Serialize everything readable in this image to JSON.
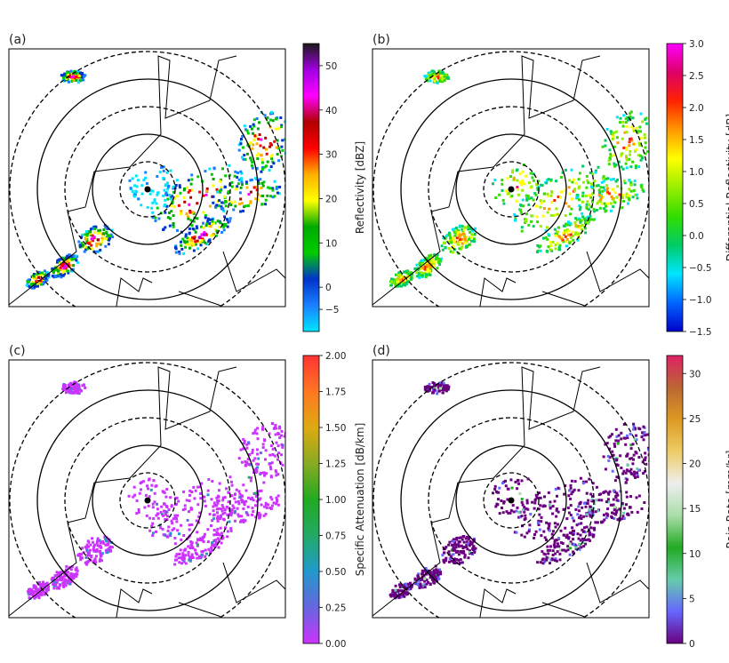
{
  "chart_data": [
    {
      "panel": "(a)",
      "type": "radar-ppi",
      "colorbar": {
        "label": "Reflectivity [dBZ]",
        "range": [
          -10,
          55
        ],
        "ticks": [
          -5,
          0,
          10,
          20,
          30,
          40,
          50
        ],
        "tick_labels": [
          "−5",
          "0",
          "10",
          "20",
          "30",
          "40",
          "50"
        ],
        "colors": [
          "#00e5ff",
          "#1a80ff",
          "#0033cc",
          "#00cc00",
          "#00aa00",
          "#ffff00",
          "#ffb000",
          "#ff0000",
          "#b00000",
          "#ff00ff",
          "#a000e0",
          "#1a1a1a"
        ]
      }
    },
    {
      "panel": "(b)",
      "type": "radar-ppi",
      "colorbar": {
        "label": "Differential Reflectivity [dB]",
        "range": [
          -1.5,
          3.0
        ],
        "ticks": [
          -1.5,
          -1.0,
          -0.5,
          0.0,
          0.5,
          1.0,
          1.5,
          2.0,
          2.5,
          3.0
        ],
        "tick_labels": [
          "−1.5",
          "−1.0",
          "−0.5",
          "0.0",
          "0.5",
          "1.0",
          "1.5",
          "2.0",
          "2.5",
          "3.0"
        ],
        "colors": [
          "#0000cc",
          "#0066ff",
          "#00e5ff",
          "#00cc66",
          "#33dd00",
          "#99ee00",
          "#ffff00",
          "#ff9900",
          "#ff2200",
          "#dd0066",
          "#ff00ff"
        ]
      }
    },
    {
      "panel": "(c)",
      "type": "radar-ppi",
      "colorbar": {
        "label": "Specific Attenuation [dB/km]",
        "range": [
          0.0,
          2.0
        ],
        "ticks": [
          0.0,
          0.25,
          0.5,
          0.75,
          1.0,
          1.25,
          1.5,
          1.75,
          2.0
        ],
        "tick_labels": [
          "0.00",
          "0.25",
          "0.50",
          "0.75",
          "1.00",
          "1.25",
          "1.50",
          "1.75",
          "2.00"
        ],
        "colors": [
          "#cc33ff",
          "#6666dd",
          "#2299cc",
          "#22aa66",
          "#22aa22",
          "#88aa22",
          "#ddaa11",
          "#ff7722",
          "#ff3333"
        ]
      }
    },
    {
      "panel": "(d)",
      "type": "radar-ppi",
      "colorbar": {
        "label": "Rain Rate [mm/hr]",
        "range": [
          0,
          32
        ],
        "ticks": [
          0,
          5,
          10,
          15,
          20,
          25,
          30
        ],
        "tick_labels": [
          "0",
          "5",
          "10",
          "15",
          "20",
          "25",
          "30"
        ],
        "colors": [
          "#6a0080",
          "#6666ff",
          "#66ccaa",
          "#22aa22",
          "#aaddaa",
          "#eeeeee",
          "#eecc66",
          "#dd9922",
          "#bb6633",
          "#dd2266"
        ]
      }
    }
  ]
}
